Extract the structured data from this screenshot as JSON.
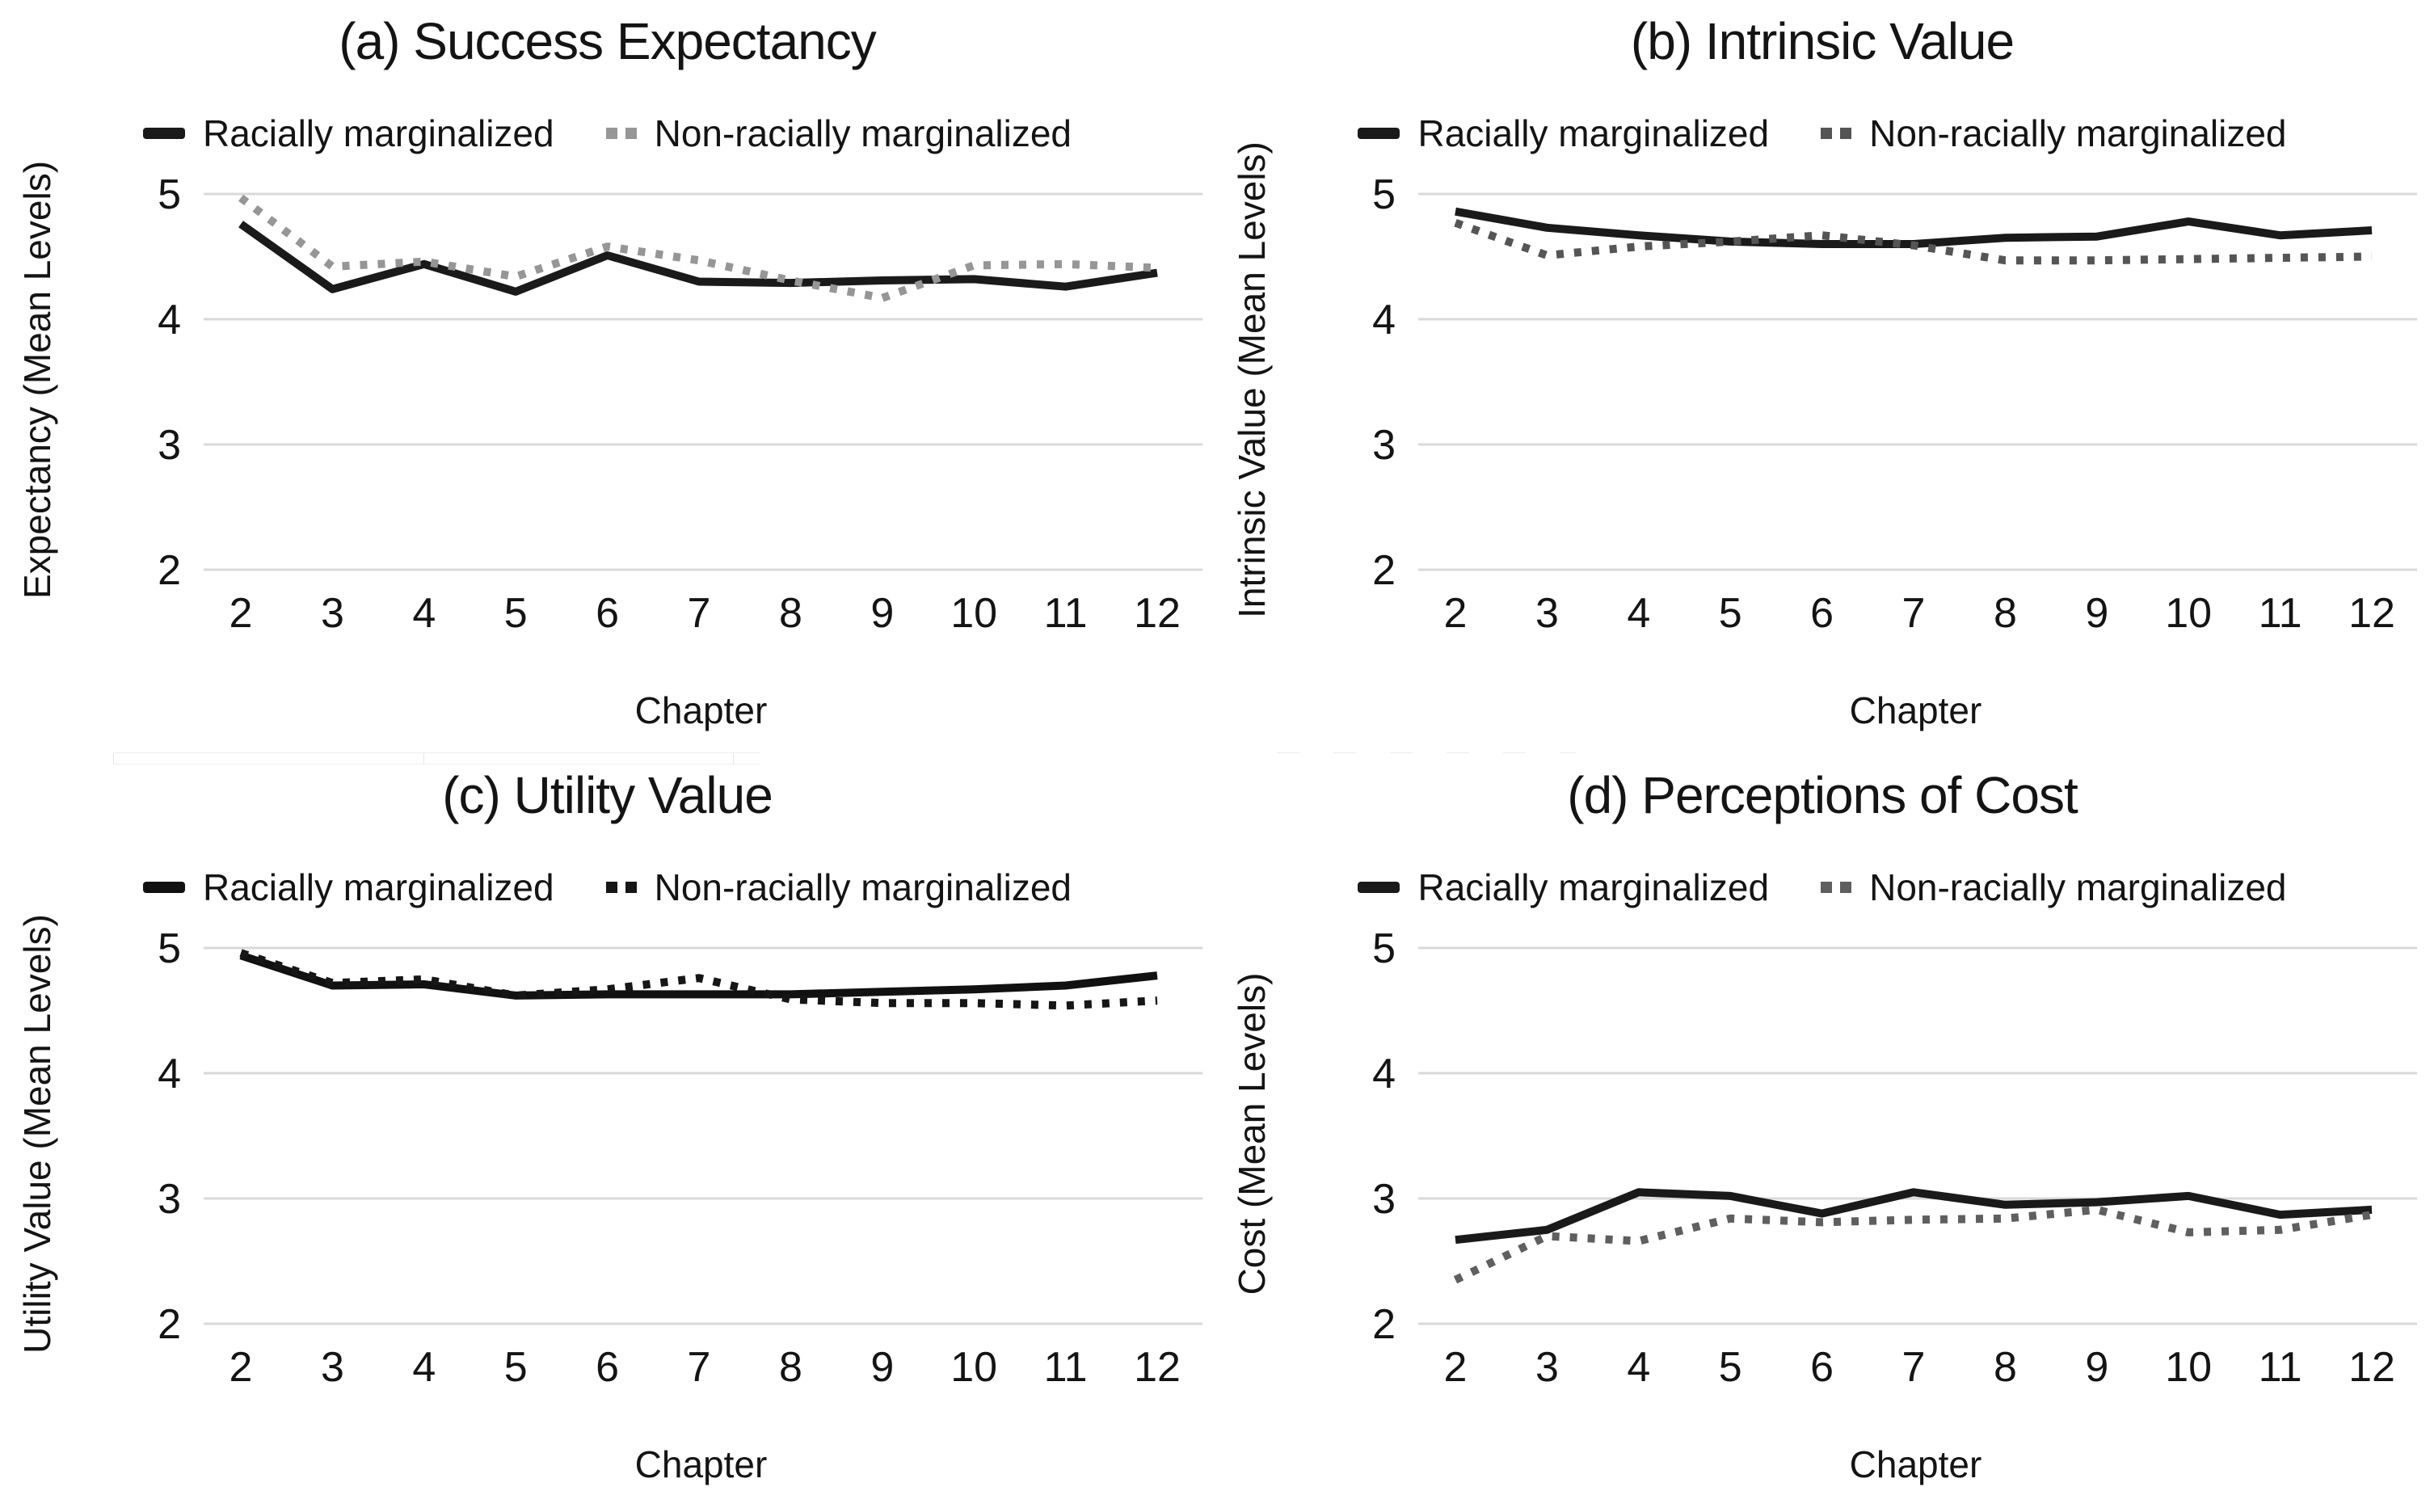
{
  "colors": {
    "background": "#ffffff",
    "grid_line": "#d9d9d9",
    "text": "#141414",
    "solid_series": "#1a1a1a"
  },
  "shared": {
    "xlabel": "Chapter",
    "x_ticks": [
      2,
      3,
      4,
      5,
      6,
      7,
      8,
      9,
      10,
      11,
      12
    ],
    "y_ticks": [
      5,
      4,
      3,
      2
    ],
    "legend_labels": [
      "Racially marginalized",
      "Non-racially marginalized"
    ]
  },
  "chart_data": [
    {
      "type": "line",
      "panel": "a",
      "title": "(a) Success Expectancy",
      "xlabel": "Chapter",
      "ylabel": "Expectancy (Mean Levels)",
      "x": [
        2,
        3,
        4,
        5,
        6,
        7,
        8,
        9,
        10,
        11,
        12
      ],
      "ylim": [
        2,
        5
      ],
      "yticks": [
        5,
        4,
        3,
        2
      ],
      "grid": true,
      "legend_position": "top",
      "series": [
        {
          "name": "Racially marginalized",
          "style": "solid",
          "color": "#1a1a1a",
          "values": [
            4.76,
            4.24,
            4.44,
            4.22,
            4.51,
            4.3,
            4.29,
            4.31,
            4.32,
            4.26,
            4.37
          ]
        },
        {
          "name": "Non-racially marginalized",
          "style": "dotted",
          "color": "#969696",
          "values": [
            4.97,
            4.42,
            4.46,
            4.34,
            4.58,
            4.47,
            4.31,
            4.17,
            4.43,
            4.44,
            4.41
          ]
        }
      ]
    },
    {
      "type": "line",
      "panel": "b",
      "title": "(b) Intrinsic Value",
      "xlabel": "Chapter",
      "ylabel": "Intrinsic Value (Mean Levels)",
      "x": [
        2,
        3,
        4,
        5,
        6,
        7,
        8,
        9,
        10,
        11,
        12
      ],
      "ylim": [
        2,
        5
      ],
      "yticks": [
        5,
        4,
        3,
        2
      ],
      "grid": true,
      "legend_position": "top",
      "series": [
        {
          "name": "Racially marginalized",
          "style": "solid",
          "color": "#1a1a1a",
          "values": [
            4.86,
            4.73,
            4.67,
            4.62,
            4.6,
            4.6,
            4.65,
            4.66,
            4.78,
            4.67,
            4.71
          ]
        },
        {
          "name": "Non-racially marginalized",
          "style": "dotted",
          "color": "#555555",
          "values": [
            4.77,
            4.51,
            4.58,
            4.62,
            4.67,
            4.59,
            4.47,
            4.47,
            4.48,
            4.49,
            4.5
          ]
        }
      ]
    },
    {
      "type": "line",
      "panel": "c",
      "title": "(c) Utility Value",
      "xlabel": "Chapter",
      "ylabel": "Utility Value (Mean Levels)",
      "x": [
        2,
        3,
        4,
        5,
        6,
        7,
        8,
        9,
        10,
        11,
        12
      ],
      "ylim": [
        2,
        5
      ],
      "yticks": [
        5,
        4,
        3,
        2
      ],
      "grid": true,
      "legend_position": "top",
      "series": [
        {
          "name": "Racially marginalized",
          "style": "solid",
          "color": "#111111",
          "values": [
            4.94,
            4.7,
            4.71,
            4.62,
            4.63,
            4.63,
            4.63,
            4.65,
            4.67,
            4.7,
            4.78
          ]
        },
        {
          "name": "Non-racially marginalized",
          "style": "dotted",
          "color": "#161616",
          "values": [
            4.96,
            4.72,
            4.75,
            4.62,
            4.67,
            4.76,
            4.59,
            4.56,
            4.56,
            4.54,
            4.58
          ]
        }
      ]
    },
    {
      "type": "line",
      "panel": "d",
      "title": "(d) Perceptions of Cost",
      "xlabel": "Chapter",
      "ylabel": "Cost (Mean Levels)",
      "x": [
        2,
        3,
        4,
        5,
        6,
        7,
        8,
        9,
        10,
        11,
        12
      ],
      "ylim": [
        2,
        5
      ],
      "yticks": [
        5,
        4,
        3,
        2
      ],
      "grid": true,
      "legend_position": "top",
      "series": [
        {
          "name": "Racially marginalized",
          "style": "solid",
          "color": "#1a1a1a",
          "values": [
            2.67,
            2.75,
            3.05,
            3.02,
            2.88,
            3.05,
            2.95,
            2.97,
            3.02,
            2.87,
            2.91
          ]
        },
        {
          "name": "Non-racially marginalized",
          "style": "dotted",
          "color": "#5f5f5f",
          "values": [
            2.35,
            2.7,
            2.66,
            2.84,
            2.81,
            2.83,
            2.84,
            2.91,
            2.73,
            2.75,
            2.87
          ]
        }
      ]
    }
  ]
}
